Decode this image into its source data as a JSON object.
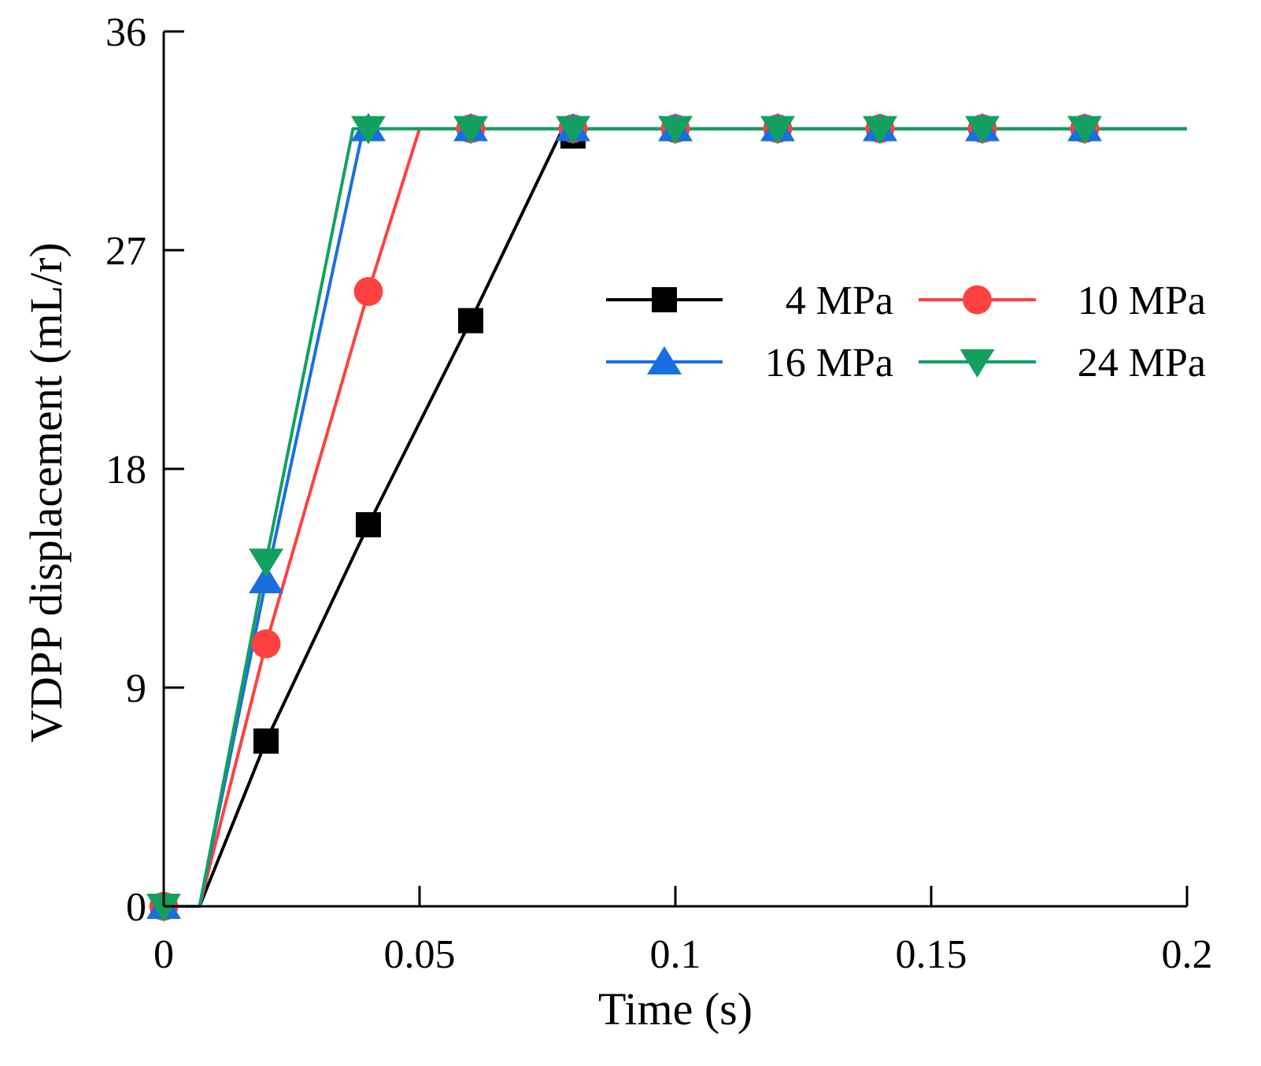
{
  "chart_data": {
    "type": "line",
    "title": "",
    "xlabel": "Time (s)",
    "ylabel": "VDPP displacement (mL/r)",
    "xlim": [
      0,
      0.2
    ],
    "ylim": [
      0,
      36
    ],
    "xticks": [
      0,
      0.05,
      0.1,
      0.15,
      0.2
    ],
    "xtick_labels": [
      "0",
      "0.05",
      "0.1",
      "0.15",
      "0.2"
    ],
    "yticks": [
      0,
      9,
      18,
      27,
      36
    ],
    "ytick_labels": [
      "0",
      "9",
      "18",
      "27",
      "36"
    ],
    "grid": false,
    "legend": "top-right, 2 columns",
    "series": [
      {
        "name": "4 MPa",
        "color": "#000000",
        "marker": "square",
        "line": [
          [
            0,
            0
          ],
          [
            0.007,
            0
          ],
          [
            0.02,
            6.8
          ],
          [
            0.04,
            15.7
          ],
          [
            0.06,
            24.1
          ],
          [
            0.078,
            32.0
          ],
          [
            0.2,
            32.0
          ]
        ],
        "points": [
          [
            0,
            0
          ],
          [
            0.02,
            6.8
          ],
          [
            0.04,
            15.7
          ],
          [
            0.06,
            24.1
          ],
          [
            0.08,
            31.7
          ],
          [
            0.1,
            32.0
          ],
          [
            0.12,
            32.0
          ],
          [
            0.14,
            32.0
          ],
          [
            0.16,
            32.0
          ],
          [
            0.18,
            32.0
          ]
        ]
      },
      {
        "name": "10 MPa",
        "color": "#ff4040",
        "marker": "circle",
        "line": [
          [
            0,
            0
          ],
          [
            0.007,
            0
          ],
          [
            0.02,
            10.8
          ],
          [
            0.04,
            25.3
          ],
          [
            0.05,
            32.0
          ],
          [
            0.2,
            32.0
          ]
        ],
        "points": [
          [
            0,
            0
          ],
          [
            0.02,
            10.8
          ],
          [
            0.04,
            25.3
          ],
          [
            0.06,
            32.0
          ],
          [
            0.08,
            32.0
          ],
          [
            0.1,
            32.0
          ],
          [
            0.12,
            32.0
          ],
          [
            0.14,
            32.0
          ],
          [
            0.16,
            32.0
          ],
          [
            0.18,
            32.0
          ]
        ]
      },
      {
        "name": "16 MPa",
        "color": "#1a6fe0",
        "marker": "triangle-up",
        "line": [
          [
            0,
            0
          ],
          [
            0.007,
            0
          ],
          [
            0.02,
            13.4
          ],
          [
            0.039,
            32.0
          ],
          [
            0.2,
            32.0
          ]
        ],
        "points": [
          [
            0,
            0
          ],
          [
            0.02,
            13.4
          ],
          [
            0.04,
            32.0
          ],
          [
            0.06,
            32.0
          ],
          [
            0.08,
            32.0
          ],
          [
            0.1,
            32.0
          ],
          [
            0.12,
            32.0
          ],
          [
            0.14,
            32.0
          ],
          [
            0.16,
            32.0
          ],
          [
            0.18,
            32.0
          ]
        ]
      },
      {
        "name": "24 MPa",
        "color": "#12a060",
        "marker": "triangle-down",
        "line": [
          [
            0,
            0
          ],
          [
            0.007,
            0
          ],
          [
            0.02,
            14.2
          ],
          [
            0.037,
            32.0
          ],
          [
            0.2,
            32.0
          ]
        ],
        "points": [
          [
            0,
            0
          ],
          [
            0.02,
            14.2
          ],
          [
            0.04,
            32.0
          ],
          [
            0.06,
            32.0
          ],
          [
            0.08,
            32.0
          ],
          [
            0.1,
            32.0
          ],
          [
            0.12,
            32.0
          ],
          [
            0.14,
            32.0
          ],
          [
            0.16,
            32.0
          ],
          [
            0.18,
            32.0
          ]
        ]
      }
    ]
  }
}
